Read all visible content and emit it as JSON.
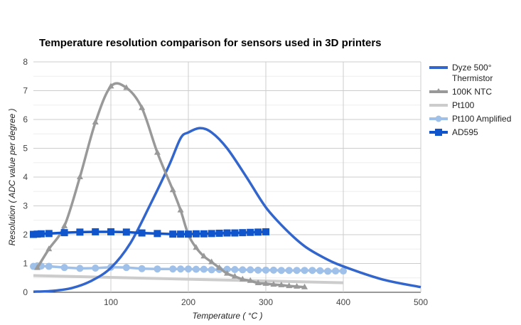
{
  "chart_data": {
    "type": "line",
    "title": "Temperature resolution comparison for sensors used in 3D printers",
    "xlabel": "Temperature ( °C )",
    "ylabel": "Resolution ( ADC value per degree )",
    "xlim": [
      0,
      500
    ],
    "ylim": [
      0,
      8
    ],
    "xticks": [
      "100",
      "200",
      "300",
      "400",
      "500"
    ],
    "yticks": [
      "0",
      "1",
      "2",
      "3",
      "4",
      "5",
      "6",
      "7",
      "8"
    ],
    "grid": true,
    "legend": "right",
    "series": [
      {
        "name": "Dyze 500° Thermistor",
        "color": "#3366cc",
        "marker": "none",
        "smooth": true,
        "x": [
          0,
          25,
          50,
          75,
          100,
          125,
          150,
          175,
          190,
          200,
          215,
          230,
          250,
          275,
          300,
          325,
          350,
          375,
          400,
          450,
          500
        ],
        "y": [
          0.02,
          0.05,
          0.15,
          0.4,
          0.85,
          1.7,
          3.0,
          4.4,
          5.35,
          5.55,
          5.7,
          5.55,
          5.0,
          4.0,
          2.95,
          2.2,
          1.6,
          1.2,
          0.9,
          0.45,
          0.18
        ]
      },
      {
        "name": "100K NTC",
        "color": "#999999",
        "marker": "triangle",
        "smooth": true,
        "x": [
          5,
          20,
          40,
          60,
          80,
          100,
          120,
          140,
          160,
          180,
          190,
          200,
          210,
          220,
          230,
          240,
          250,
          260,
          270,
          280,
          290,
          300,
          310,
          320,
          330,
          340,
          350
        ],
        "y": [
          0.85,
          1.5,
          2.3,
          4.0,
          5.9,
          7.15,
          7.1,
          6.4,
          4.85,
          3.55,
          2.85,
          2.0,
          1.55,
          1.25,
          1.05,
          0.85,
          0.65,
          0.55,
          0.45,
          0.4,
          0.32,
          0.3,
          0.27,
          0.25,
          0.22,
          0.2,
          0.18
        ]
      },
      {
        "name": "Pt100",
        "color": "#cccccc",
        "marker": "none",
        "smooth": false,
        "x": [
          0,
          400
        ],
        "y": [
          0.58,
          0.33
        ]
      },
      {
        "name": "Pt100 Amplified",
        "color": "#9fc0e8",
        "marker": "circle",
        "smooth": false,
        "x": [
          0,
          5,
          10,
          20,
          40,
          60,
          80,
          100,
          120,
          140,
          160,
          180,
          190,
          200,
          210,
          220,
          230,
          240,
          250,
          260,
          270,
          280,
          290,
          300,
          310,
          320,
          330,
          340,
          350,
          360,
          370,
          380,
          390,
          400
        ],
        "y": [
          0.9,
          0.92,
          0.91,
          0.9,
          0.86,
          0.83,
          0.84,
          0.87,
          0.86,
          0.82,
          0.81,
          0.81,
          0.81,
          0.81,
          0.8,
          0.8,
          0.78,
          0.79,
          0.8,
          0.79,
          0.78,
          0.78,
          0.77,
          0.77,
          0.77,
          0.76,
          0.76,
          0.76,
          0.76,
          0.76,
          0.75,
          0.73,
          0.74,
          0.74
        ]
      },
      {
        "name": "AD595",
        "color": "#1155cc",
        "marker": "square",
        "smooth": false,
        "x": [
          0,
          5,
          10,
          20,
          40,
          60,
          80,
          100,
          120,
          140,
          160,
          180,
          190,
          200,
          210,
          220,
          230,
          240,
          250,
          260,
          270,
          280,
          290,
          300
        ],
        "y": [
          2.01,
          2.02,
          2.03,
          2.04,
          2.07,
          2.09,
          2.1,
          2.1,
          2.09,
          2.06,
          2.04,
          2.02,
          2.02,
          2.02,
          2.03,
          2.03,
          2.04,
          2.05,
          2.06,
          2.06,
          2.07,
          2.08,
          2.09,
          2.1
        ]
      }
    ]
  }
}
